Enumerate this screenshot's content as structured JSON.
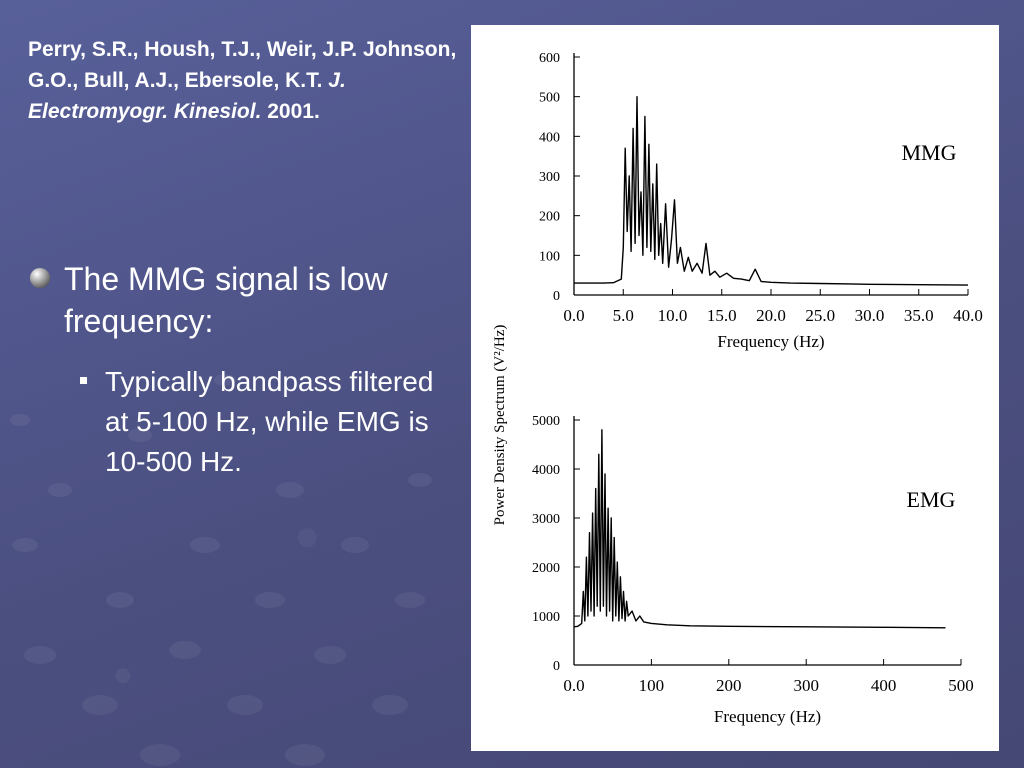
{
  "slide": {
    "citation": {
      "authors": "Perry, S.R., Housh, T.J., Weir, J.P. Johnson, G.O., Bull, A.J., Ebersole, K.T.",
      "journal": "J. Electromyogr. Kinesiol.",
      "year": "2001."
    },
    "bullet_main": "The MMG signal is low frequency:",
    "bullet_sub": "Typically bandpass filtered at 5-100 Hz, while EMG is 10-500 Hz."
  },
  "figure": {
    "ylabel": "Power Density Spectrum (V²/Hz)"
  },
  "chart_data": [
    {
      "type": "line",
      "title": "MMG",
      "xlabel": "Frequency (Hz)",
      "ylabel": "Power Density Spectrum (V²/Hz)",
      "xlim": [
        0,
        40
      ],
      "ylim": [
        0,
        600
      ],
      "x_ticks": [
        "0.0",
        "5.0",
        "10.0",
        "15.0",
        "20.0",
        "25.0",
        "30.0",
        "35.0",
        "40.0"
      ],
      "y_ticks": [
        "0",
        "100",
        "200",
        "300",
        "400",
        "500",
        "600"
      ],
      "x": [
        0,
        1,
        2,
        3,
        4,
        4.8,
        5.0,
        5.2,
        5.4,
        5.6,
        5.8,
        6.0,
        6.2,
        6.4,
        6.6,
        6.8,
        7.0,
        7.2,
        7.4,
        7.6,
        7.8,
        8.0,
        8.2,
        8.4,
        8.6,
        8.8,
        9.0,
        9.3,
        9.6,
        9.9,
        10.2,
        10.5,
        10.8,
        11.2,
        11.6,
        12.0,
        12.5,
        13.0,
        13.4,
        13.8,
        14.3,
        14.8,
        15.5,
        16.2,
        17.0,
        17.8,
        18.4,
        19.0,
        20,
        22,
        25,
        28,
        30,
        35,
        40
      ],
      "y": [
        30,
        30,
        30,
        30,
        31,
        40,
        120,
        370,
        160,
        300,
        110,
        420,
        130,
        500,
        150,
        260,
        100,
        450,
        120,
        380,
        110,
        280,
        90,
        330,
        100,
        180,
        80,
        230,
        70,
        140,
        240,
        80,
        120,
        60,
        95,
        60,
        80,
        55,
        130,
        50,
        60,
        45,
        55,
        42,
        40,
        36,
        65,
        34,
        32,
        30,
        29,
        28,
        27,
        26,
        25
      ]
    },
    {
      "type": "line",
      "title": "EMG",
      "xlabel": "Frequency (Hz)",
      "ylabel": "Power Density Spectrum (V²/Hz)",
      "xlim": [
        0,
        500
      ],
      "ylim": [
        0,
        5000
      ],
      "x_ticks": [
        "0.0",
        "100",
        "200",
        "300",
        "400",
        "500"
      ],
      "y_ticks": [
        "0",
        "1000",
        "2000",
        "3000",
        "4000",
        "5000"
      ],
      "x": [
        0,
        5,
        10,
        12,
        14,
        16,
        18,
        20,
        22,
        24,
        26,
        28,
        30,
        32,
        34,
        36,
        38,
        40,
        42,
        44,
        46,
        48,
        50,
        52,
        54,
        56,
        58,
        60,
        62,
        64,
        66,
        68,
        70,
        75,
        80,
        85,
        90,
        100,
        120,
        150,
        200,
        300,
        400,
        480
      ],
      "y": [
        780,
        790,
        850,
        1500,
        900,
        2200,
        1000,
        2700,
        1100,
        3100,
        1000,
        3600,
        1200,
        4300,
        1100,
        4800,
        1200,
        3900,
        1000,
        3200,
        1100,
        3000,
        900,
        2600,
        1000,
        2100,
        900,
        1800,
        950,
        1500,
        900,
        1300,
        1000,
        1100,
        900,
        1000,
        880,
        850,
        820,
        800,
        790,
        780,
        770,
        760
      ]
    }
  ]
}
